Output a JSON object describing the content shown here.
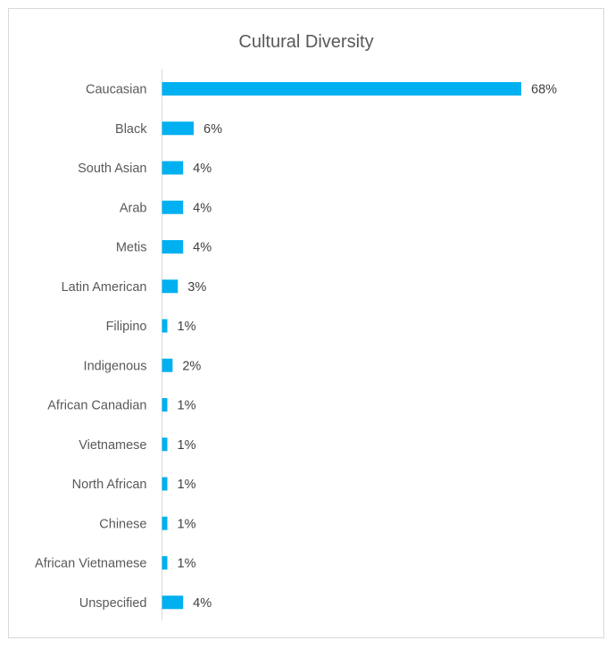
{
  "chart_data": {
    "type": "bar",
    "orientation": "horizontal",
    "title": "Cultural Diversity",
    "xlabel": "",
    "ylabel": "",
    "grid": false,
    "legend": "none",
    "bar_color": "#00b0f0",
    "xlim": [
      0,
      68
    ],
    "categories": [
      "Caucasian",
      "Black",
      "South Asian",
      "Arab",
      "Metis",
      "Latin American",
      "Filipino",
      "Indigenous",
      "African Canadian",
      "Vietnamese",
      "North African",
      "Chinese",
      "African Vietnamese",
      "Unspecified"
    ],
    "values": [
      68,
      6,
      4,
      4,
      4,
      3,
      1,
      2,
      1,
      1,
      1,
      1,
      1,
      4
    ],
    "data_labels": [
      "68%",
      "6%",
      "4%",
      "4%",
      "4%",
      "3%",
      "1%",
      "2%",
      "1%",
      "1%",
      "1%",
      "1%",
      "1%",
      "4%"
    ]
  }
}
